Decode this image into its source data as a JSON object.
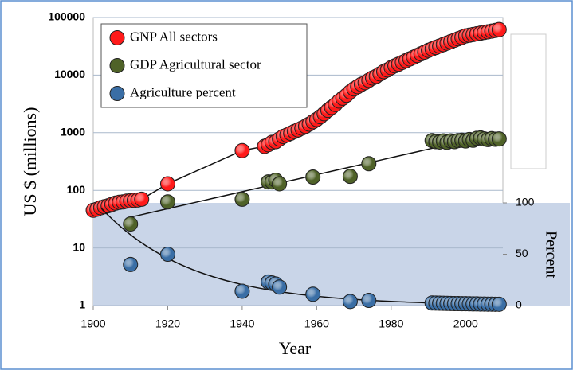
{
  "chart_data": {
    "type": "scatter",
    "xlabel": "Year",
    "ylabel": "US $ (millions)",
    "y2label": "Percent",
    "xlim": [
      1900,
      2010
    ],
    "xticks": [
      1900,
      1920,
      1940,
      1960,
      1980,
      2000
    ],
    "ylim": [
      1,
      100000
    ],
    "yticks": [
      1,
      10,
      100,
      1000,
      10000,
      100000
    ],
    "yscale": "log",
    "y2lim": [
      0,
      100
    ],
    "y2ticks": [
      0,
      50,
      100
    ],
    "grid": true,
    "legend": "upper left",
    "series": [
      {
        "name": "GNP All sectors",
        "color": "#ff1a1a",
        "trendline": "connect",
        "x": [
          1900,
          1901,
          1902,
          1903,
          1904,
          1905,
          1906,
          1907,
          1908,
          1909,
          1910,
          1911,
          1912,
          1913,
          1920,
          1940,
          1946,
          1947,
          1948,
          1949,
          1950,
          1951,
          1952,
          1953,
          1954,
          1955,
          1956,
          1957,
          1958,
          1959,
          1960,
          1961,
          1962,
          1963,
          1964,
          1965,
          1966,
          1967,
          1968,
          1969,
          1970,
          1971,
          1972,
          1973,
          1974,
          1975,
          1976,
          1977,
          1978,
          1979,
          1980,
          1981,
          1982,
          1983,
          1984,
          1985,
          1986,
          1987,
          1988,
          1989,
          1990,
          1991,
          1992,
          1993,
          1994,
          1995,
          1996,
          1997,
          1998,
          1999,
          2000,
          2001,
          2002,
          2003,
          2004,
          2005,
          2006,
          2007,
          2008,
          2009
        ],
        "values": [
          45,
          47,
          50,
          52,
          54,
          57,
          60,
          62,
          63,
          65,
          66,
          67,
          68,
          70,
          130,
          490,
          580,
          620,
          680,
          700,
          780,
          860,
          912,
          977,
          1050,
          1120,
          1200,
          1290,
          1410,
          1550,
          1700,
          1900,
          2140,
          2450,
          2750,
          3090,
          3550,
          3980,
          4470,
          5130,
          5750,
          6310,
          6920,
          7410,
          8130,
          8910,
          9550,
          10500,
          11500,
          12300,
          13500,
          14500,
          15500,
          16600,
          17800,
          19100,
          20400,
          21900,
          23400,
          25100,
          26900,
          28500,
          30200,
          32000,
          33900,
          35900,
          38000,
          40300,
          42700,
          45200,
          47900,
          49200,
          50600,
          52000,
          53500,
          55000,
          56500,
          58100,
          59700,
          61700
        ]
      },
      {
        "name": "GDP Agricultural sector",
        "color": "#4f6228",
        "trendline": "exponential",
        "x": [
          1910,
          1920,
          1940,
          1947,
          1948,
          1949,
          1950,
          1959,
          1969,
          1974,
          1991,
          1992,
          1993,
          1994,
          1995,
          1996,
          1997,
          1998,
          1999,
          2000,
          2001,
          2002,
          2003,
          2004,
          2005,
          2006,
          2007,
          2008,
          2009
        ],
        "values": [
          26,
          63,
          70,
          140,
          140,
          150,
          130,
          170,
          175,
          290,
          730,
          700,
          690,
          720,
          680,
          720,
          700,
          730,
          740,
          720,
          760,
          740,
          800,
          810,
          780,
          760,
          790,
          770,
          780
        ]
      },
      {
        "name": "Agriculture percent",
        "color": "#3a6ea5",
        "axis": "y2",
        "trendline": "exponential",
        "x": [
          1910,
          1920,
          1940,
          1947,
          1948,
          1949,
          1950,
          1959,
          1969,
          1974,
          1991,
          1992,
          1993,
          1994,
          1995,
          1996,
          1997,
          1998,
          1999,
          2000,
          2001,
          2002,
          2003,
          2004,
          2005,
          2006,
          2007,
          2008,
          2009
        ],
        "values": [
          40,
          50,
          14,
          23,
          22,
          21,
          18,
          11,
          4,
          5,
          2.5,
          2.4,
          2.3,
          2.2,
          2.1,
          2,
          1.9,
          1.9,
          1.8,
          1.8,
          1.7,
          1.6,
          1.6,
          1.5,
          1.5,
          1.4,
          1.4,
          1.3,
          1.3
        ]
      }
    ]
  }
}
